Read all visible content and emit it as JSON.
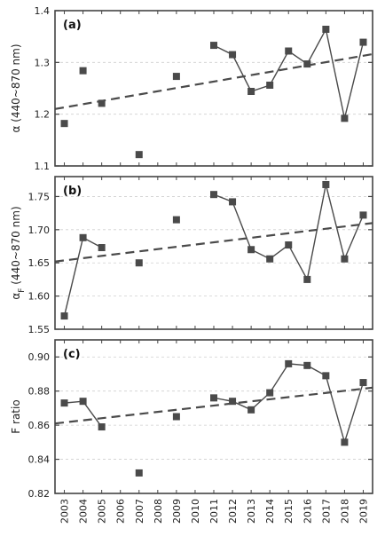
{
  "chart_data": [
    {
      "type": "line",
      "panel_label": "(a)",
      "ylabel": "α (440~870 nm)",
      "ylim": [
        1.1,
        1.4
      ],
      "yticks": [
        1.1,
        1.2,
        1.3,
        1.4
      ],
      "ytick_labels": [
        "1.1",
        "1.2",
        "1.3",
        "1.4"
      ],
      "grid": "horizontal dashed",
      "x": [
        2003,
        2004,
        2005,
        2007,
        2009,
        2011,
        2012,
        2013,
        2014,
        2015,
        2016,
        2017,
        2018,
        2019
      ],
      "values": [
        1.182,
        1.284,
        1.221,
        1.122,
        1.273,
        1.333,
        1.315,
        1.244,
        1.256,
        1.322,
        1.297,
        1.364,
        1.192,
        1.339
      ],
      "connected_from_year": 2011,
      "trend": [
        1.21,
        1.316
      ]
    },
    {
      "type": "line",
      "panel_label": "(b)",
      "ylabel": "α_F (440~870 nm)",
      "ylabel_main": "α",
      "ylabel_sub": "F",
      "ylabel_rest": " (440~870 nm)",
      "ylim": [
        1.55,
        1.78
      ],
      "yticks": [
        1.55,
        1.6,
        1.65,
        1.7,
        1.75
      ],
      "ytick_labels": [
        "1.55",
        "1.60",
        "1.65",
        "1.70",
        "1.75"
      ],
      "grid": "horizontal dashed",
      "x": [
        2003,
        2004,
        2005,
        2007,
        2009,
        2011,
        2012,
        2013,
        2014,
        2015,
        2016,
        2017,
        2018,
        2019
      ],
      "values": [
        1.57,
        1.688,
        1.673,
        1.65,
        1.715,
        1.753,
        1.742,
        1.67,
        1.656,
        1.677,
        1.625,
        1.768,
        1.656,
        1.722
      ],
      "connected_until_year": 2005,
      "connected_from_year": 2011,
      "trend": [
        1.652,
        1.71
      ]
    },
    {
      "type": "line",
      "panel_label": "(c)",
      "ylabel": "F ratio",
      "ylim": [
        0.82,
        0.91
      ],
      "yticks": [
        0.82,
        0.84,
        0.86,
        0.88,
        0.9
      ],
      "ytick_labels": [
        "0.82",
        "0.84",
        "0.86",
        "0.88",
        "0.90"
      ],
      "grid": "horizontal dashed",
      "x": [
        2003,
        2004,
        2005,
        2007,
        2009,
        2011,
        2012,
        2013,
        2014,
        2015,
        2016,
        2017,
        2018,
        2019
      ],
      "values": [
        0.873,
        0.874,
        0.859,
        0.832,
        0.865,
        0.876,
        0.874,
        0.869,
        0.879,
        0.896,
        0.895,
        0.889,
        0.85,
        0.885
      ],
      "connected_until_year": 2005,
      "connected_from_year": 2011,
      "trend": [
        0.861,
        0.882
      ]
    }
  ],
  "x_axis": {
    "xlim": [
      2002.5,
      2019.5
    ],
    "ticks": [
      2003,
      2004,
      2005,
      2006,
      2007,
      2008,
      2009,
      2010,
      2011,
      2012,
      2013,
      2014,
      2015,
      2016,
      2017,
      2018,
      2019
    ],
    "tick_labels": [
      "2003",
      "2004",
      "2005",
      "2006",
      "2007",
      "2008",
      "2009",
      "2010",
      "2011",
      "2012",
      "2013",
      "2014",
      "2015",
      "2016",
      "2017",
      "2018",
      "2019"
    ]
  },
  "colors": {
    "series": "#4a4a4a",
    "trend": "#4a4a4a",
    "frame": "#444444",
    "grid": "#cfcfcf"
  }
}
